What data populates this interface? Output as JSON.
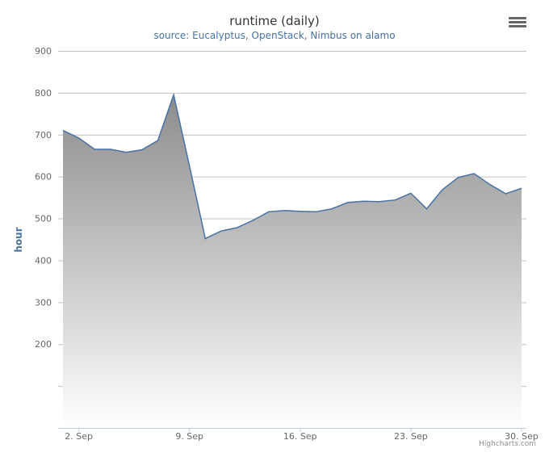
{
  "title": "runtime (daily)",
  "subtitle": "source: Eucalyptus, OpenStack, Nimbus on alamo",
  "credits": "Highcharts.com",
  "menu_icon": "hamburger-menu-icon",
  "colors": {
    "line": "#4572a7",
    "fill_top": "#8c8c8c",
    "fill_bottom": "#ffffff",
    "grid": "#c0c0c0"
  },
  "chart_data": {
    "type": "area",
    "title": "runtime (daily)",
    "subtitle": "source: Eucalyptus, OpenStack, Nimbus on alamo",
    "xlabel": "",
    "ylabel": "hour",
    "ylim": [
      0,
      900
    ],
    "yticks": [
      200,
      300,
      400,
      500,
      600,
      700,
      800,
      900
    ],
    "xlim": [
      "1. Sep",
      "30. Sep"
    ],
    "xticks": [
      "2. Sep",
      "9. Sep",
      "16. Sep",
      "23. Sep",
      "30. Sep"
    ],
    "grid": true,
    "legend": false,
    "series": [
      {
        "x": [
          "1. Sep",
          "2. Sep",
          "3. Sep",
          "4. Sep",
          "5. Sep",
          "6. Sep",
          "7. Sep",
          "8. Sep",
          "9. Sep",
          "10. Sep",
          "11. Sep",
          "12. Sep",
          "13. Sep",
          "14. Sep",
          "15. Sep",
          "16. Sep",
          "17. Sep",
          "18. Sep",
          "19. Sep",
          "20. Sep",
          "21. Sep",
          "22. Sep",
          "23. Sep",
          "24. Sep",
          "25. Sep",
          "26. Sep",
          "27. Sep",
          "28. Sep",
          "29. Sep",
          "30. Sep"
        ],
        "values": [
          710,
          692,
          665,
          665,
          658,
          664,
          686,
          795,
          625,
          452,
          470,
          478,
          495,
          516,
          519,
          517,
          516,
          523,
          538,
          541,
          540,
          544,
          560,
          523,
          569,
          598,
          607,
          581,
          559,
          572
        ]
      }
    ]
  }
}
